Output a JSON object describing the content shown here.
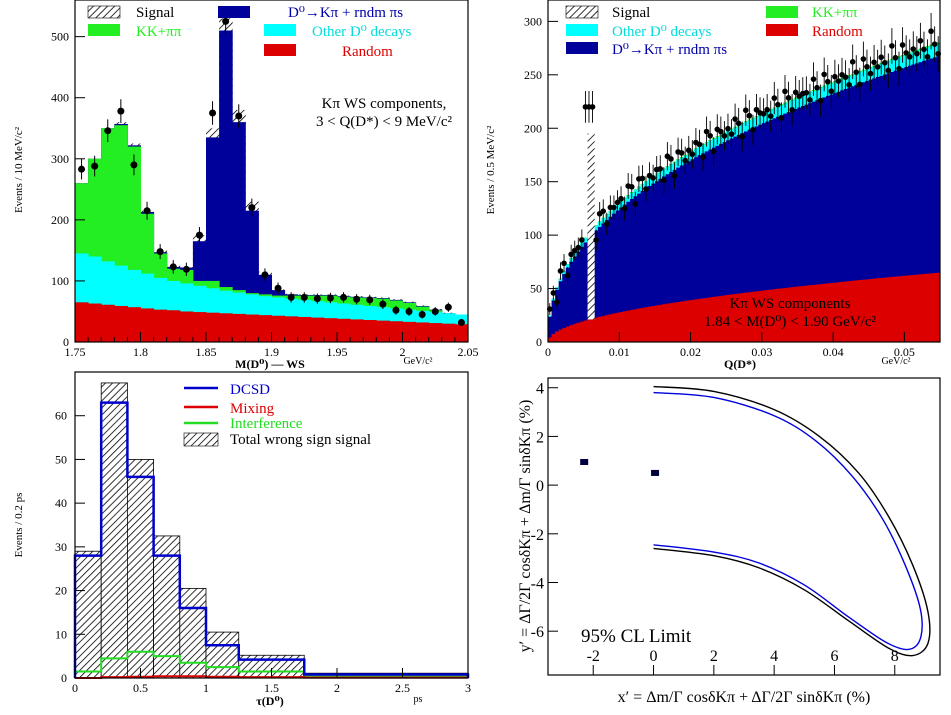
{
  "chart_data": [
    {
      "type": "bar",
      "panel": "top-left",
      "ylabel": "Events / 10 MeV/c²",
      "xlabel": "M(D⁰) — WS",
      "xunit": "GeV/c²",
      "xlim": [
        1.75,
        2.05
      ],
      "ylim": [
        0,
        560
      ],
      "xticks": [
        "1.75",
        "1.8",
        "1.85",
        "1.9",
        "1.95",
        "2",
        "2.05"
      ],
      "yticks": [
        "0",
        "100",
        "200",
        "300",
        "400",
        "500"
      ],
      "annotation": [
        "Kπ WS components,",
        "3 < Q(D*) < 9 MeV/c²"
      ],
      "legend": [
        {
          "label": "Signal",
          "color": "hatch"
        },
        {
          "label": "D⁰→Kπ + rndm πs",
          "color": "#00009a"
        },
        {
          "label": "KK+ππ",
          "color": "#22ee22"
        },
        {
          "label": "Other D⁰ decays",
          "color": "#00ffff"
        },
        {
          "label": "Random",
          "color": "#dd0000"
        }
      ],
      "bin_edges": [
        1.75,
        1.76,
        1.77,
        1.78,
        1.79,
        1.8,
        1.81,
        1.82,
        1.83,
        1.84,
        1.85,
        1.86,
        1.87,
        1.88,
        1.89,
        1.9,
        1.91,
        1.92,
        1.93,
        1.94,
        1.95,
        1.96,
        1.97,
        1.98,
        1.99,
        2.0,
        2.01,
        2.02,
        2.03,
        2.04,
        2.05
      ],
      "series": [
        {
          "name": "Random",
          "values": [
            65,
            63,
            61,
            59,
            57,
            55,
            53,
            52,
            50,
            49,
            48,
            47,
            46,
            45,
            44,
            43,
            42,
            41,
            40,
            39,
            38,
            37,
            36,
            35,
            34,
            33,
            32,
            31,
            30,
            29
          ]
        },
        {
          "name": "Other D⁰ decays",
          "values": [
            145,
            140,
            132,
            125,
            118,
            112,
            105,
            100,
            96,
            92,
            88,
            84,
            81,
            78,
            75,
            73,
            71,
            69,
            67,
            65,
            63,
            61,
            59,
            57,
            55,
            53,
            51,
            49,
            47,
            45
          ]
        },
        {
          "name": "KK+ππ",
          "values": [
            260,
            300,
            350,
            355,
            320,
            210,
            145,
            120,
            118,
            100,
            100,
            90,
            85,
            80,
            78,
            76,
            76,
            76,
            76,
            76,
            74,
            73,
            72,
            71,
            68,
            64,
            58,
            52,
            46,
            40
          ]
        },
        {
          "name": "D⁰→Kπ + rndm πs",
          "values": [
            260,
            300,
            350,
            357,
            322,
            213,
            147,
            123,
            122,
            165,
            335,
            510,
            360,
            215,
            110,
            85,
            78,
            77,
            77,
            77,
            75,
            74,
            73,
            72,
            69,
            65,
            59,
            53,
            47,
            41
          ]
        },
        {
          "name": "Signal",
          "values": [
            260,
            300,
            350,
            360,
            325,
            215,
            150,
            125,
            123,
            175,
            350,
            530,
            380,
            230,
            115,
            86,
            79,
            78,
            78,
            78,
            76,
            75,
            74,
            73,
            70,
            66,
            60,
            54,
            48,
            42
          ]
        }
      ],
      "data_points": [
        {
          "x": 1.755,
          "y": 283
        },
        {
          "x": 1.765,
          "y": 288
        },
        {
          "x": 1.775,
          "y": 346
        },
        {
          "x": 1.785,
          "y": 378
        },
        {
          "x": 1.795,
          "y": 290
        },
        {
          "x": 1.805,
          "y": 215
        },
        {
          "x": 1.815,
          "y": 148
        },
        {
          "x": 1.825,
          "y": 123
        },
        {
          "x": 1.835,
          "y": 119
        },
        {
          "x": 1.845,
          "y": 175
        },
        {
          "x": 1.855,
          "y": 375
        },
        {
          "x": 1.865,
          "y": 525
        },
        {
          "x": 1.875,
          "y": 370
        },
        {
          "x": 1.885,
          "y": 220
        },
        {
          "x": 1.895,
          "y": 110
        },
        {
          "x": 1.905,
          "y": 88
        },
        {
          "x": 1.915,
          "y": 73
        },
        {
          "x": 1.925,
          "y": 73
        },
        {
          "x": 1.935,
          "y": 71
        },
        {
          "x": 1.945,
          "y": 72
        },
        {
          "x": 1.955,
          "y": 73
        },
        {
          "x": 1.965,
          "y": 70
        },
        {
          "x": 1.975,
          "y": 69
        },
        {
          "x": 1.985,
          "y": 62
        },
        {
          "x": 1.995,
          "y": 52
        },
        {
          "x": 2.005,
          "y": 50
        },
        {
          "x": 2.015,
          "y": 45
        },
        {
          "x": 2.025,
          "y": 50
        },
        {
          "x": 2.035,
          "y": 57
        },
        {
          "x": 2.045,
          "y": 32
        }
      ]
    },
    {
      "type": "bar",
      "panel": "top-right",
      "ylabel": "Events / 0.5 MeV/c²",
      "xlabel": "Q(D*)",
      "xunit": "GeV/c²",
      "xlim": [
        0,
        0.055
      ],
      "ylim": [
        0,
        320
      ],
      "xticks": [
        "0",
        "0.01",
        "0.02",
        "0.03",
        "0.04",
        "0.05"
      ],
      "yticks": [
        "0",
        "50",
        "100",
        "150",
        "200",
        "250",
        "300"
      ],
      "annotation": [
        "Kπ WS components",
        "1.84 < M(D⁰) < 1.90 GeV/c²"
      ],
      "legend": [
        {
          "label": "Signal",
          "color": "hatch"
        },
        {
          "label": "KK+ππ",
          "color": "#22ee22"
        },
        {
          "label": "Other D⁰ decays",
          "color": "#00ffff"
        },
        {
          "label": "Random",
          "color": "#dd0000"
        },
        {
          "label": "D⁰→Kπ + rndm πs",
          "color": "#00009a"
        }
      ],
      "curves": [
        {
          "name": "Random",
          "params": [
            65,
            0.055,
            0.5
          ]
        },
        {
          "name": "D⁰→Kπ + rndm πs",
          "params": [
            268,
            0.055,
            0.45
          ]
        },
        {
          "name": "Other D⁰ decays",
          "params": [
            280,
            0.055,
            0.45
          ]
        },
        {
          "name": "KK+ππ",
          "params": [
            281,
            0.055,
            0.45
          ]
        }
      ],
      "signal_peak": {
        "x": 0.0058,
        "height": 195
      }
    },
    {
      "type": "bar",
      "panel": "bottom-left",
      "ylabel": "Events / 0.2 ps",
      "xlabel": "τ(D⁰)",
      "xunit": "ps",
      "xlim": [
        0,
        3
      ],
      "ylim": [
        0,
        70
      ],
      "xticks": [
        "0",
        "0.5",
        "1",
        "1.5",
        "2",
        "2.5",
        "3"
      ],
      "yticks": [
        "0",
        "10",
        "20",
        "30",
        "40",
        "50",
        "60"
      ],
      "legend": [
        {
          "label": "DCSD",
          "color": "#0000cc"
        },
        {
          "label": "Mixing",
          "color": "#dd0000"
        },
        {
          "label": "Interference",
          "color": "#22dd22"
        },
        {
          "label": "Total wrong sign signal",
          "color": "hatch"
        }
      ],
      "bin_edges": [
        0,
        0.2,
        0.4,
        0.6,
        0.8,
        1.0,
        1.25,
        1.75,
        3.0
      ],
      "series": [
        {
          "name": "Total wrong sign signal",
          "values": [
            29,
            67.5,
            50,
            32.5,
            20.5,
            10.5,
            5.2,
            1.1
          ]
        },
        {
          "name": "DCSD",
          "values": [
            28,
            63,
            46,
            28,
            16,
            7.5,
            4.2,
            0.8
          ]
        },
        {
          "name": "Mixing",
          "values": [
            0,
            0.2,
            0.3,
            0.4,
            0.4,
            0.3,
            0.2,
            0.1
          ]
        },
        {
          "name": "Interference",
          "values": [
            1.5,
            4.5,
            6,
            5,
            3.5,
            2.5,
            1.5,
            0.5
          ]
        }
      ]
    },
    {
      "type": "scatter",
      "panel": "bottom-right",
      "xlabel": "x′ = Δm/Γ cosδKπ + ΔΓ/2Γ sinδKπ  (%)",
      "ylabel": "y′ = ΔΓ/2Γ cosδKπ + Δm/Γ sinδKπ  (%)",
      "xlim": [
        -3.5,
        9.5
      ],
      "ylim": [
        -7.8,
        4.4
      ],
      "xticks": [
        "-2",
        "0",
        "2",
        "4",
        "6",
        "8"
      ],
      "yticks": [
        "-6",
        "-4",
        "-2",
        "0",
        "2",
        "4"
      ],
      "annotation": "95% CL Limit",
      "points": [
        {
          "x": -2.3,
          "y": 0.95
        },
        {
          "x": 0.05,
          "y": 0.5
        }
      ],
      "contours": [
        {
          "color": "#000000",
          "points": [
            [
              0,
              4.05
            ],
            [
              2,
              3.85
            ],
            [
              4,
              3.1
            ],
            [
              5.5,
              2.0
            ],
            [
              6.8,
              0.5
            ],
            [
              7.8,
              -1.3
            ],
            [
              8.6,
              -3.3
            ],
            [
              9.1,
              -5.2
            ],
            [
              9.1,
              -6.5
            ],
            [
              8.6,
              -7.0
            ],
            [
              7.8,
              -6.7
            ],
            [
              6.5,
              -5.6
            ],
            [
              5,
              -4.3
            ],
            [
              3.5,
              -3.4
            ],
            [
              2,
              -2.9
            ],
            [
              0,
              -2.6
            ]
          ]
        },
        {
          "color": "#0000dd",
          "points": [
            [
              0,
              3.8
            ],
            [
              2,
              3.6
            ],
            [
              4,
              2.85
            ],
            [
              5.4,
              1.8
            ],
            [
              6.6,
              0.35
            ],
            [
              7.6,
              -1.4
            ],
            [
              8.35,
              -3.3
            ],
            [
              8.85,
              -5.1
            ],
            [
              8.85,
              -6.3
            ],
            [
              8.45,
              -6.75
            ],
            [
              7.7,
              -6.45
            ],
            [
              6.45,
              -5.4
            ],
            [
              5,
              -4.1
            ],
            [
              3.5,
              -3.2
            ],
            [
              2,
              -2.75
            ],
            [
              0,
              -2.45
            ]
          ]
        }
      ]
    }
  ]
}
